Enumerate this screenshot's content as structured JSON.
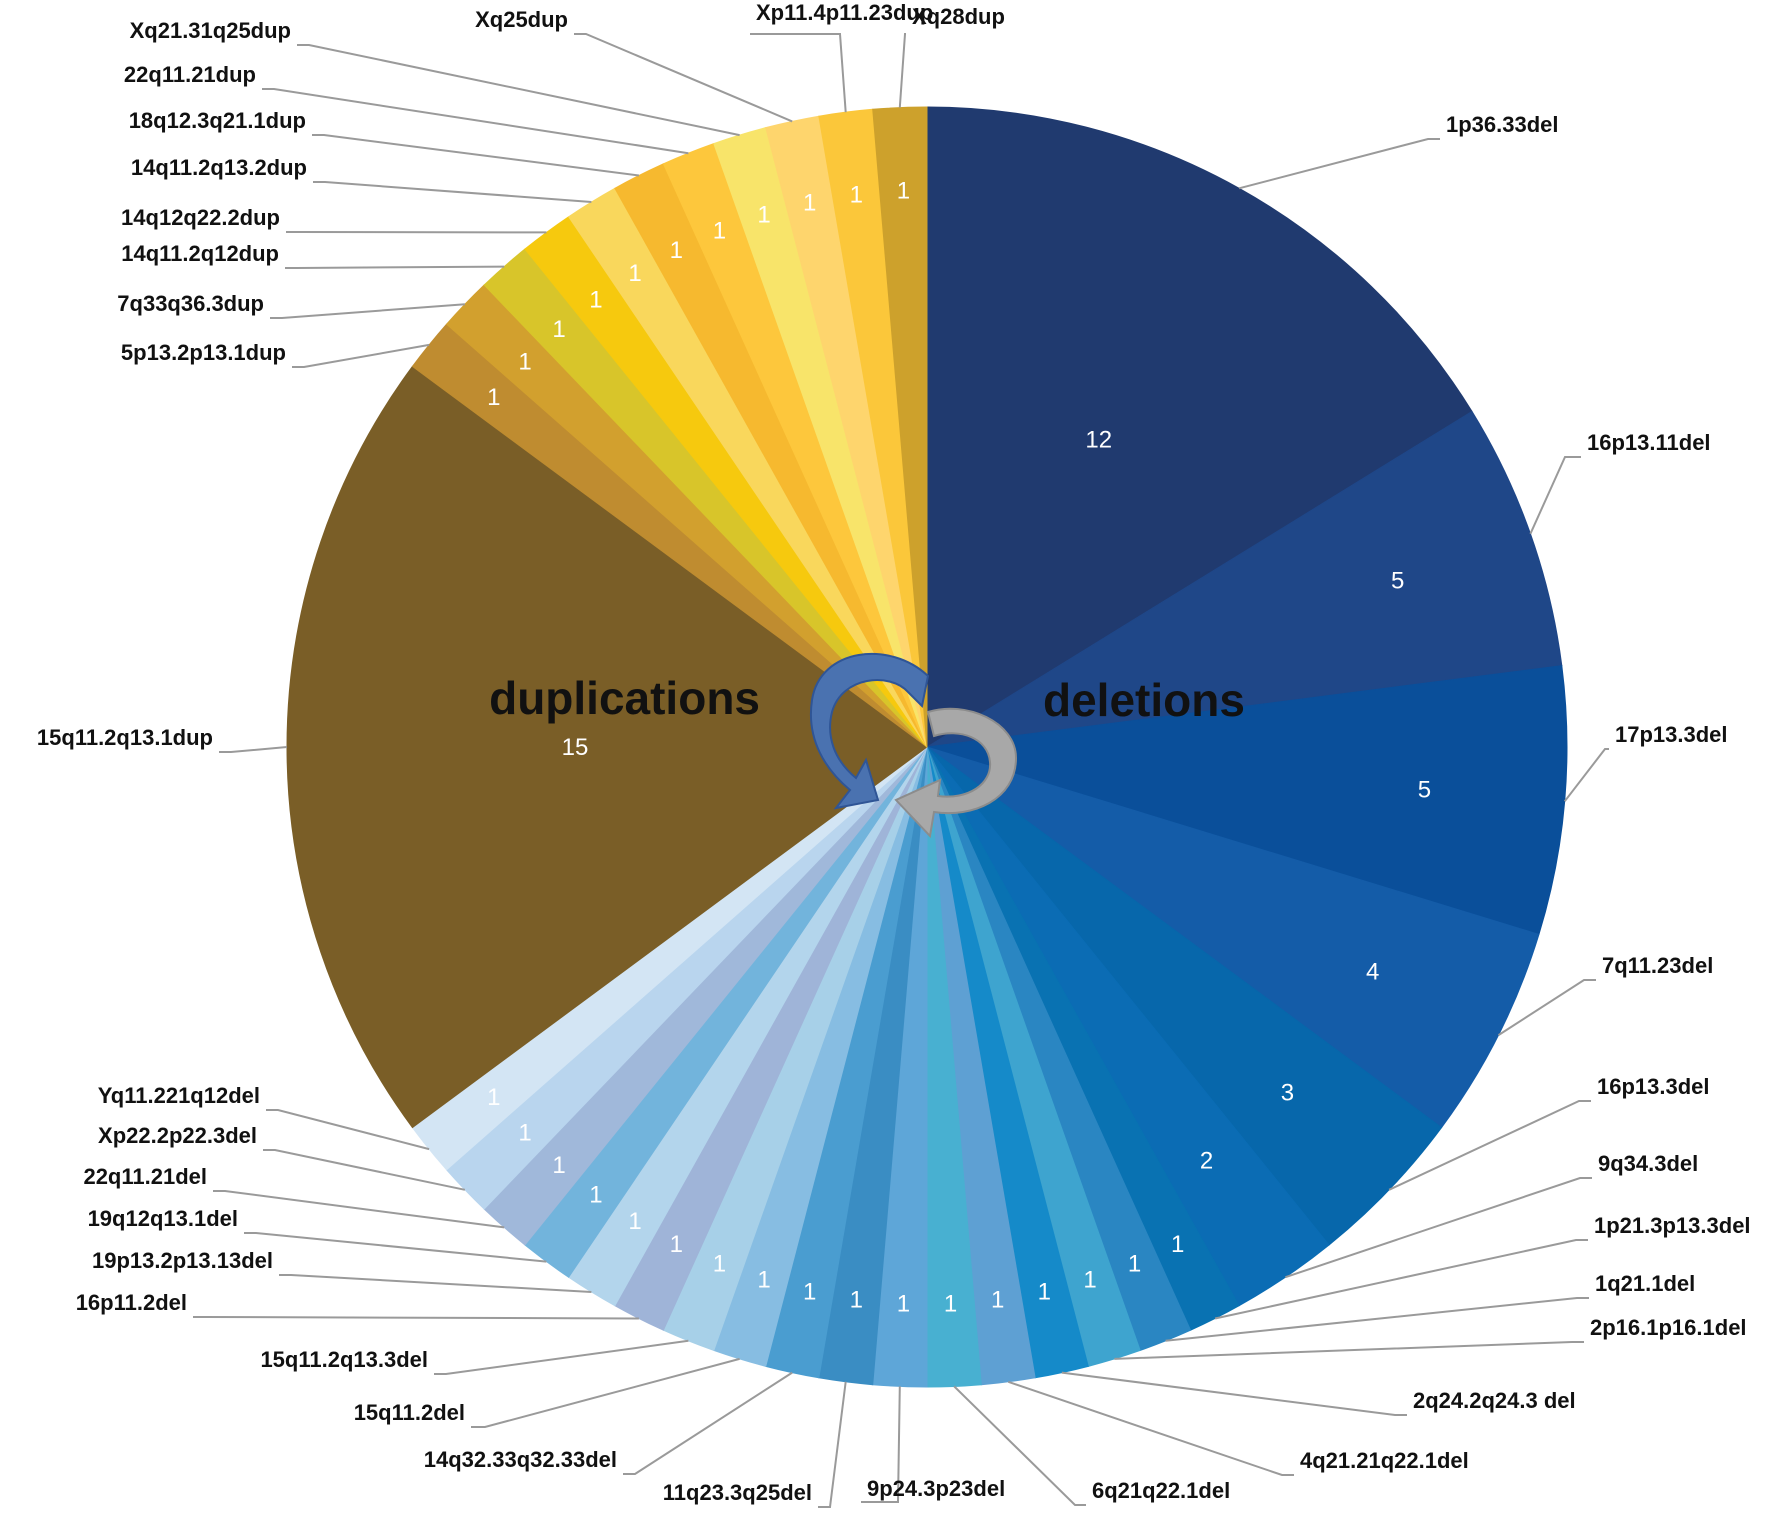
{
  "chart_data": {
    "type": "pie",
    "title": "",
    "group_labels": {
      "duplications": "duplications",
      "deletions": "deletions"
    },
    "arrow_colors": {
      "blue": "#4a72b0",
      "grey": "#a8a8a8"
    },
    "start": "12 o'clock",
    "direction": "clockwise",
    "slices": [
      {
        "label": "1p36.33del",
        "value": 12,
        "color": "#203a6f"
      },
      {
        "label": "16p13.11del",
        "value": 5,
        "color": "#1f4788"
      },
      {
        "label": "17p13.3del",
        "value": 5,
        "color": "#0a4f9a"
      },
      {
        "label": "7q11.23del",
        "value": 4,
        "color": "#145ca8"
      },
      {
        "label": "16p13.3del",
        "value": 3,
        "color": "#0767ab"
      },
      {
        "label": "9q34.3del",
        "value": 2,
        "color": "#0b6cb4"
      },
      {
        "label": "1p21.3p13.3del",
        "value": 1,
        "color": "#0972b2"
      },
      {
        "label": "1q21.1del",
        "value": 1,
        "color": "#2a86c2"
      },
      {
        "label": "2p16.1p16.1del",
        "value": 1,
        "color": "#3ea4cf"
      },
      {
        "label": "2q24.2q24.3 del",
        "value": 1,
        "color": "#158ac9"
      },
      {
        "label": "4q21.21q22.1del",
        "value": 1,
        "color": "#5ea0d3"
      },
      {
        "label": "6q21q22.1del",
        "value": 1,
        "color": "#48b0d1"
      },
      {
        "label": "9p24.3p23del",
        "value": 1,
        "color": "#5ea6d8"
      },
      {
        "label": "11q23.3q25del",
        "value": 1,
        "color": "#3a8dc3"
      },
      {
        "label": "14q32.33q32.33del",
        "value": 1,
        "color": "#4a9dd0"
      },
      {
        "label": "15q11.2del",
        "value": 1,
        "color": "#87bde2"
      },
      {
        "label": "15q11.2q13.3del",
        "value": 1,
        "color": "#a7d0e8"
      },
      {
        "label": "16p11.2del",
        "value": 1,
        "color": "#9fb4d8"
      },
      {
        "label": "19p13.2p13.13del",
        "value": 1,
        "color": "#b3d5ec"
      },
      {
        "label": "19q12q13.1del",
        "value": 1,
        "color": "#72b4dc"
      },
      {
        "label": "22q11.21del",
        "value": 1,
        "color": "#a0b8da"
      },
      {
        "label": "Xp22.2p22.3del",
        "value": 1,
        "color": "#b9d5ee"
      },
      {
        "label": "Yq11.221q12del",
        "value": 1,
        "color": "#d3e5f4"
      },
      {
        "label": "15q11.2q13.1dup",
        "value": 15,
        "color": "#7a5e27"
      },
      {
        "label": "5p13.2p13.1dup",
        "value": 1,
        "color": "#bf8c30"
      },
      {
        "label": "7q33q36.3dup",
        "value": 1,
        "color": "#d2a02e"
      },
      {
        "label": "14q11.2q12dup",
        "value": 1,
        "color": "#d8c52a"
      },
      {
        "label": "14q12q22.2dup",
        "value": 1,
        "color": "#f6c90e"
      },
      {
        "label": "14q11.2q13.2dup",
        "value": 1,
        "color": "#f9d75c"
      },
      {
        "label": "18q12.3q21.1dup",
        "value": 1,
        "color": "#f6b92f"
      },
      {
        "label": "22q11.21dup",
        "value": 1,
        "color": "#fdc73c"
      },
      {
        "label": "Xq21.31q25dup",
        "value": 1,
        "color": "#f8e46a"
      },
      {
        "label": "Xq25dup",
        "value": 1,
        "color": "#fed56d"
      },
      {
        "label": "Xp11.4p11.23dup",
        "value": 1,
        "color": "#fbc73a"
      },
      {
        "label": "Xq28dup",
        "value": 1,
        "color": "#cda12c"
      }
    ]
  }
}
